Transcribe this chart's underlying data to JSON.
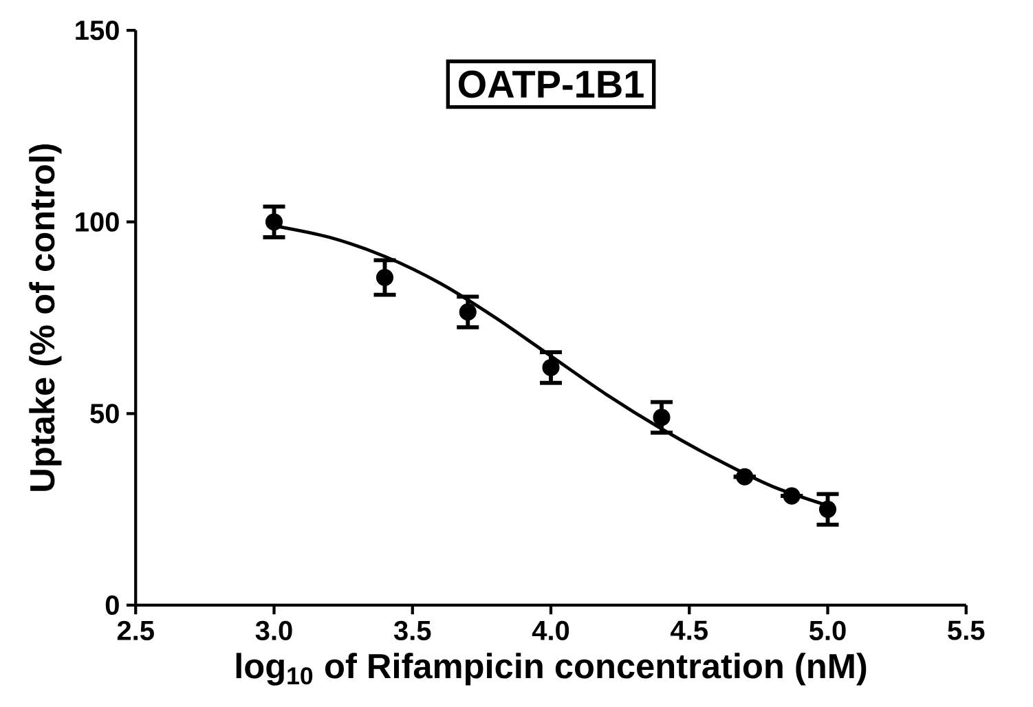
{
  "chart_data": {
    "type": "scatter",
    "title": "OATP-1B1",
    "xlabel": "log$_{10}$ of Rifampicin concentration (nM)",
    "ylabel": "Uptake (% of control)",
    "xlim": [
      2.5,
      5.5
    ],
    "xticks": [
      2.5,
      {
        "value": 3.0,
        "label": "3.0"
      },
      3.5,
      {
        "value": 4.0,
        "label": "4.0"
      },
      4.5,
      {
        "value": 5.0,
        "label": "5.0"
      },
      5.5
    ],
    "ylim": [
      0,
      150
    ],
    "yticks": [
      0,
      50,
      100,
      150
    ],
    "grid": false,
    "series": [
      {
        "color": "#000000",
        "marker": "circle",
        "x": [
          3.0,
          3.4,
          3.7,
          4.0,
          4.4,
          4.7,
          4.87,
          5.0
        ],
        "values": [
          100,
          85.5,
          76.5,
          62,
          49,
          33.5,
          28.5,
          25
        ],
        "errors": [
          4,
          4.5,
          4,
          4,
          4,
          null,
          null,
          4
        ]
      },
      {
        "type": "line",
        "color": "#000000",
        "marker": "none",
        "line_style": "solid",
        "x": [
          3.0,
          3.2,
          3.4,
          3.6,
          3.8,
          4.0,
          4.2,
          4.4,
          4.6,
          4.8,
          5.0
        ],
        "values": [
          99,
          96,
          91,
          84,
          75,
          65,
          55,
          46,
          38,
          31,
          26
        ]
      }
    ]
  }
}
